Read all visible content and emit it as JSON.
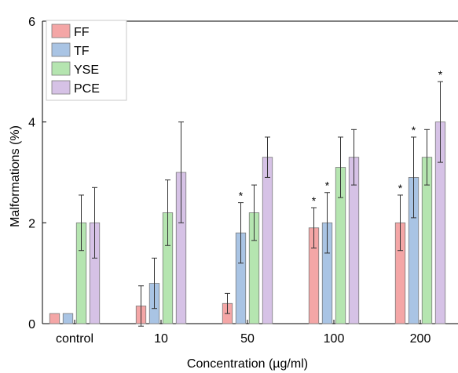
{
  "chart_data": {
    "type": "bar",
    "title": "",
    "xlabel": "Concentration (µg/ml)",
    "ylabel": "Malformations (%)",
    "ylim": [
      0,
      6
    ],
    "yticks": [
      "0",
      "2",
      "4",
      "6"
    ],
    "categories": [
      "control",
      "10",
      "50",
      "100",
      "200"
    ],
    "legend_position": "top-left",
    "grid": false,
    "series": [
      {
        "name": "FF",
        "color": "#f4a6a6",
        "values": [
          0.2,
          0.35,
          0.4,
          1.9,
          2.0
        ],
        "errors": [
          0,
          0.4,
          0.2,
          0.4,
          0.55
        ],
        "significant": [
          false,
          false,
          false,
          true,
          true
        ]
      },
      {
        "name": "TF",
        "color": "#a9c4e4",
        "values": [
          0.2,
          0.8,
          1.8,
          2.0,
          2.9
        ],
        "errors": [
          0,
          0.5,
          0.6,
          0.6,
          0.8
        ],
        "significant": [
          false,
          false,
          true,
          true,
          true
        ]
      },
      {
        "name": "YSE",
        "color": "#b5e5b0",
        "values": [
          2.0,
          2.2,
          2.2,
          3.1,
          3.3
        ],
        "errors": [
          0.55,
          0.65,
          0.55,
          0.6,
          0.55
        ],
        "significant": [
          false,
          false,
          false,
          false,
          false
        ]
      },
      {
        "name": "PCE",
        "color": "#d6c2e6",
        "values": [
          2.0,
          3.0,
          3.3,
          3.3,
          4.0
        ],
        "errors": [
          0.7,
          1.0,
          0.4,
          0.55,
          0.8
        ],
        "significant": [
          false,
          false,
          false,
          false,
          true
        ]
      }
    ],
    "significance_marker": "*"
  }
}
